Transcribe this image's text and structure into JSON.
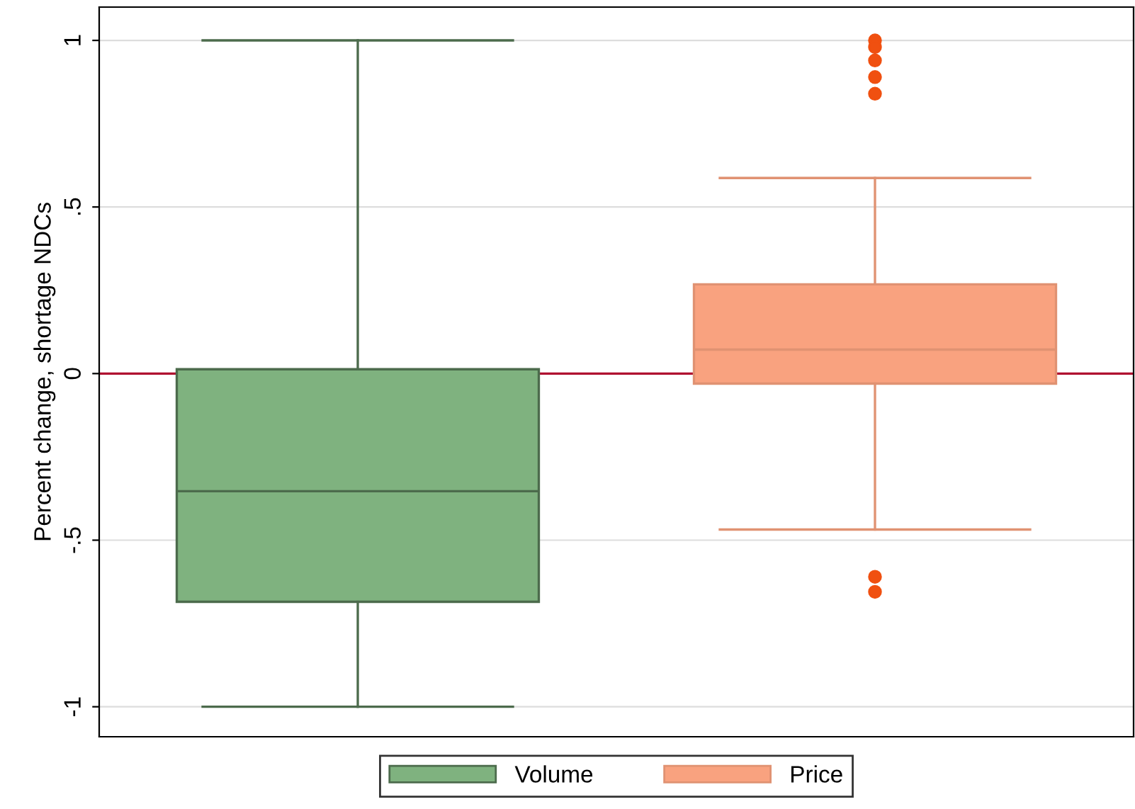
{
  "chart_data": {
    "type": "box",
    "ylabel": "Percent change, shortage NDCs",
    "categories": [
      null,
      null
    ],
    "series": [
      {
        "name": "Volume",
        "color": "#7fb27f",
        "boxes": [
          {
            "low": -1,
            "q1": -0.685,
            "median": -0.353,
            "q3": 0.013,
            "high": 1
          },
          null
        ]
      },
      {
        "name": "Price",
        "color": "#f9a27f",
        "boxes": [
          null,
          {
            "low": -0.468,
            "q1": -0.03,
            "median": 0.072,
            "q3": 0.268,
            "high": 0.587,
            "outliers": [
              1.0,
              0.98,
              0.94,
              0.89,
              0.84,
              -0.61,
              -0.655
            ]
          }
        ]
      }
    ],
    "ylim": [
      -1.09,
      1.1
    ],
    "yticks": [
      {
        "value": -1,
        "label": "-1"
      },
      {
        "value": -0.5,
        "label": "-.5"
      },
      0,
      {
        "value": 0.5,
        "label": ".5"
      },
      1
    ],
    "ref_lines": [
      {
        "axis": "y",
        "value": 0,
        "color": "#b01030"
      }
    ],
    "grid": "y",
    "legend": "bottom"
  }
}
